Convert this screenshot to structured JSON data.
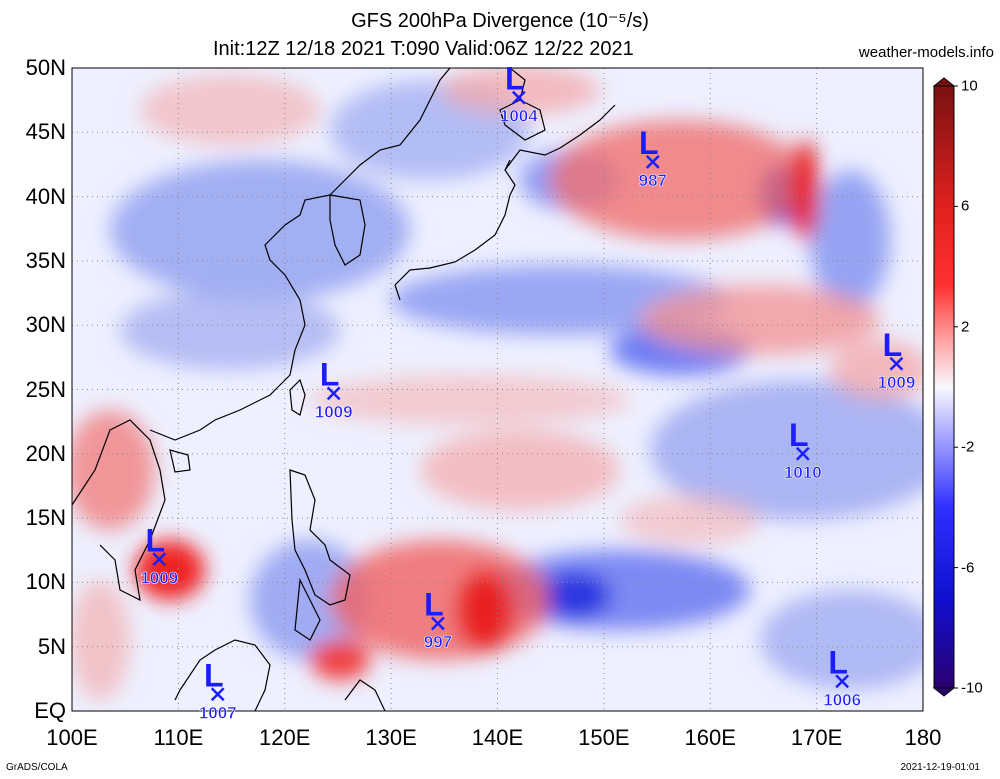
{
  "header": {
    "title_line1": "GFS 200hPa Divergence (10⁻⁵/s)",
    "title_line2": "Init:12Z 12/18 2021 T:090 Valid:06Z 12/22 2021",
    "brand": "weather-models.info"
  },
  "map": {
    "lat_labels": [
      "50N",
      "45N",
      "40N",
      "35N",
      "30N",
      "25N",
      "20N",
      "15N",
      "10N",
      "5N",
      "EQ"
    ],
    "lon_labels": [
      "100E",
      "110E",
      "120E",
      "130E",
      "140E",
      "150E",
      "160E",
      "170E",
      "180"
    ],
    "lows": [
      {
        "symbol": "L",
        "pressure": "1004",
        "lon": 142.0,
        "lat": 47.7
      },
      {
        "symbol": "L",
        "pressure": "987",
        "lon": 154.6,
        "lat": 42.7
      },
      {
        "symbol": "L",
        "pressure": "1009",
        "lon": 177.5,
        "lat": 27.0
      },
      {
        "symbol": "L",
        "pressure": "1009",
        "lon": 124.6,
        "lat": 24.7
      },
      {
        "symbol": "L",
        "pressure": "1010",
        "lon": 168.7,
        "lat": 20.0
      },
      {
        "symbol": "L",
        "pressure": "1009",
        "lon": 108.2,
        "lat": 11.8
      },
      {
        "symbol": "L",
        "pressure": "997",
        "lon": 134.4,
        "lat": 6.8
      },
      {
        "symbol": "L",
        "pressure": "1006",
        "lon": 172.4,
        "lat": 2.3
      },
      {
        "symbol": "L",
        "pressure": "1007",
        "lon": 113.7,
        "lat": 1.3
      }
    ],
    "colors": {
      "low_marker": "#1c1cff",
      "coast": "#000000",
      "grid": "#8a8a8a"
    }
  },
  "colorbar": {
    "labels": [
      "10",
      "6",
      "2",
      "-2",
      "-6",
      "-10"
    ]
  },
  "footer": {
    "left": "GrADS/COLA",
    "right": "2021-12-19-01:01"
  }
}
